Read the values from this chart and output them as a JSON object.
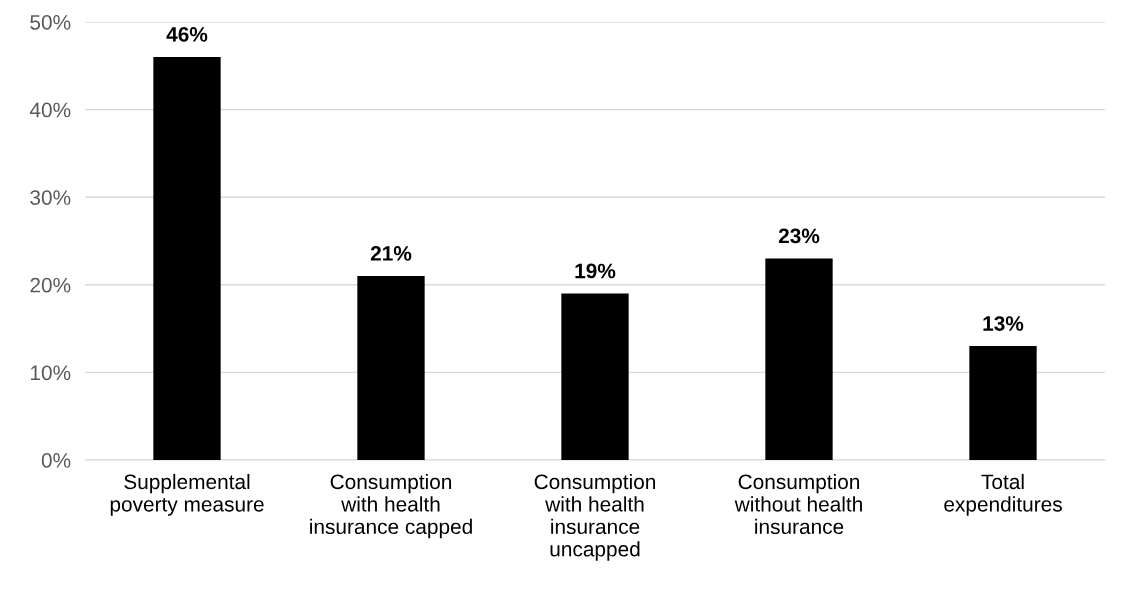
{
  "chart_data": {
    "type": "bar",
    "categories": [
      "Supplemental\npoverty measure",
      "Consumption\nwith health\ninsurance capped",
      "Consumption\nwith health\ninsurance\nuncapped",
      "Consumption\nwithout health\ninsurance",
      "Total\nexpenditures"
    ],
    "values": [
      46,
      21,
      19,
      23,
      13
    ],
    "color": "#000000",
    "value_labels": [
      "46%",
      "21%",
      "19%",
      "23%",
      "13%"
    ],
    "ylim": [
      0,
      50
    ],
    "yticks": [
      {
        "value": 0,
        "label": "0%"
      },
      {
        "value": 10,
        "label": "10%"
      },
      {
        "value": 20,
        "label": "20%"
      },
      {
        "value": 30,
        "label": "30%"
      },
      {
        "value": 40,
        "label": "40%"
      },
      {
        "value": 50,
        "label": "50%"
      }
    ],
    "grid": "y",
    "legend": false
  }
}
